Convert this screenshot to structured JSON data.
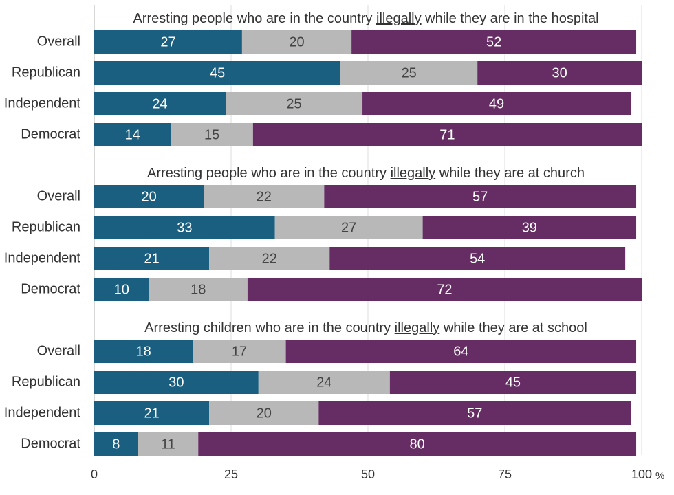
{
  "chart_data": {
    "type": "bar",
    "orientation": "horizontal",
    "stacked": true,
    "xlim": [
      0,
      100
    ],
    "x_ticks": [
      "0",
      "25",
      "50",
      "75",
      "100"
    ],
    "x_unit": "%",
    "grid": true,
    "colors": [
      "#1a5e80",
      "#b8b8b8",
      "#652d63"
    ],
    "label_colors": [
      "#ffffff",
      "#444444",
      "#ffffff"
    ],
    "panels": [
      {
        "title_before": "Arresting people who are in the country ",
        "title_emph": "illegally",
        "title_after": " while they are in the hospital",
        "categories": [
          "Overall",
          "Republican",
          "Independent",
          "Democrat"
        ],
        "values": [
          [
            27,
            20,
            52
          ],
          [
            45,
            25,
            30
          ],
          [
            24,
            25,
            49
          ],
          [
            14,
            15,
            71
          ]
        ]
      },
      {
        "title_before": "Arresting people who are in the country ",
        "title_emph": "illegally",
        "title_after": " while they are at church",
        "categories": [
          "Overall",
          "Republican",
          "Independent",
          "Democrat"
        ],
        "values": [
          [
            20,
            22,
            57
          ],
          [
            33,
            27,
            39
          ],
          [
            21,
            22,
            54
          ],
          [
            10,
            18,
            72
          ]
        ]
      },
      {
        "title_before": "Arresting children who are in the country ",
        "title_emph": "illegally",
        "title_after": " while they are at school",
        "categories": [
          "Overall",
          "Republican",
          "Independent",
          "Democrat"
        ],
        "values": [
          [
            18,
            17,
            64
          ],
          [
            30,
            24,
            45
          ],
          [
            21,
            20,
            57
          ],
          [
            8,
            11,
            80
          ]
        ]
      }
    ]
  }
}
